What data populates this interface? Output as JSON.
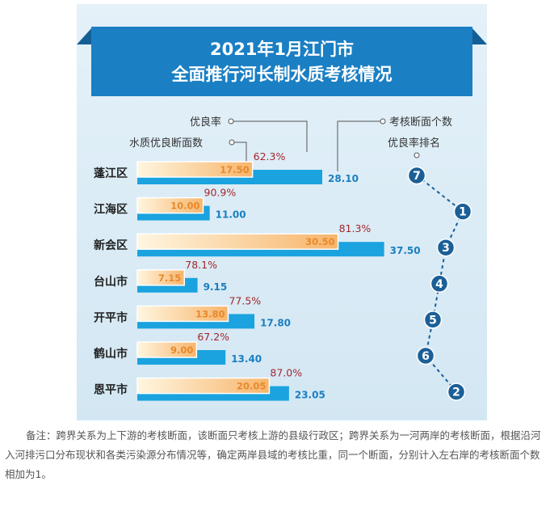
{
  "title_line1": "2021年1月江门市",
  "title_line2": "全面推行河长制水质考核情况",
  "legend": {
    "rate": "优良率",
    "good": "水质优良断面数",
    "total": "考核断面个数",
    "rank": "优良率排名"
  },
  "colors": {
    "background": "#dcecf6",
    "title_band": "#1b7fc4",
    "total_bar": "#1aa3df",
    "good_bar_start": "#fff6e0",
    "good_bar_end": "#f7b56c",
    "rate_text": "#a3272c",
    "good_text": "#e9892a",
    "total_text": "#1a7fc0",
    "rank_circle": "#1b5f97"
  },
  "chart_data": {
    "type": "bar",
    "orientation": "horizontal",
    "categories": [
      "蓬江区",
      "江海区",
      "新会区",
      "台山市",
      "开平市",
      "鹤山市",
      "恩平市"
    ],
    "series": [
      {
        "name": "考核断面个数",
        "values": [
          28.1,
          11.0,
          37.5,
          9.15,
          17.8,
          13.4,
          23.05
        ]
      },
      {
        "name": "水质优良断面数",
        "values": [
          17.5,
          10.0,
          30.5,
          7.15,
          13.8,
          9.0,
          20.05
        ]
      }
    ],
    "value_labels": {
      "total": [
        "28.10",
        "11.00",
        "37.50",
        "9.15",
        "17.80",
        "13.40",
        "23.05"
      ],
      "good": [
        "17.50",
        "10.00",
        "30.50",
        "7.15",
        "13.80",
        "9.00",
        "20.05"
      ]
    },
    "rates": [
      "62.3%",
      "90.9%",
      "81.3%",
      "78.1%",
      "77.5%",
      "67.2%",
      "87.0%"
    ],
    "ranks": [
      "7",
      "1",
      "3",
      "4",
      "5",
      "6",
      "2"
    ],
    "xlim": [
      0,
      37.5
    ]
  },
  "note": "备注：跨界关系为上下游的考核断面，该断面只考核上游的县级行政区；跨界关系为一河两岸的考核断面，根据沿河入河排污口分布现状和各类污染源分布情况等，确定两岸县域的考核比重，同一个断面，分别计入左右岸的考核断面个数相加为1。"
}
